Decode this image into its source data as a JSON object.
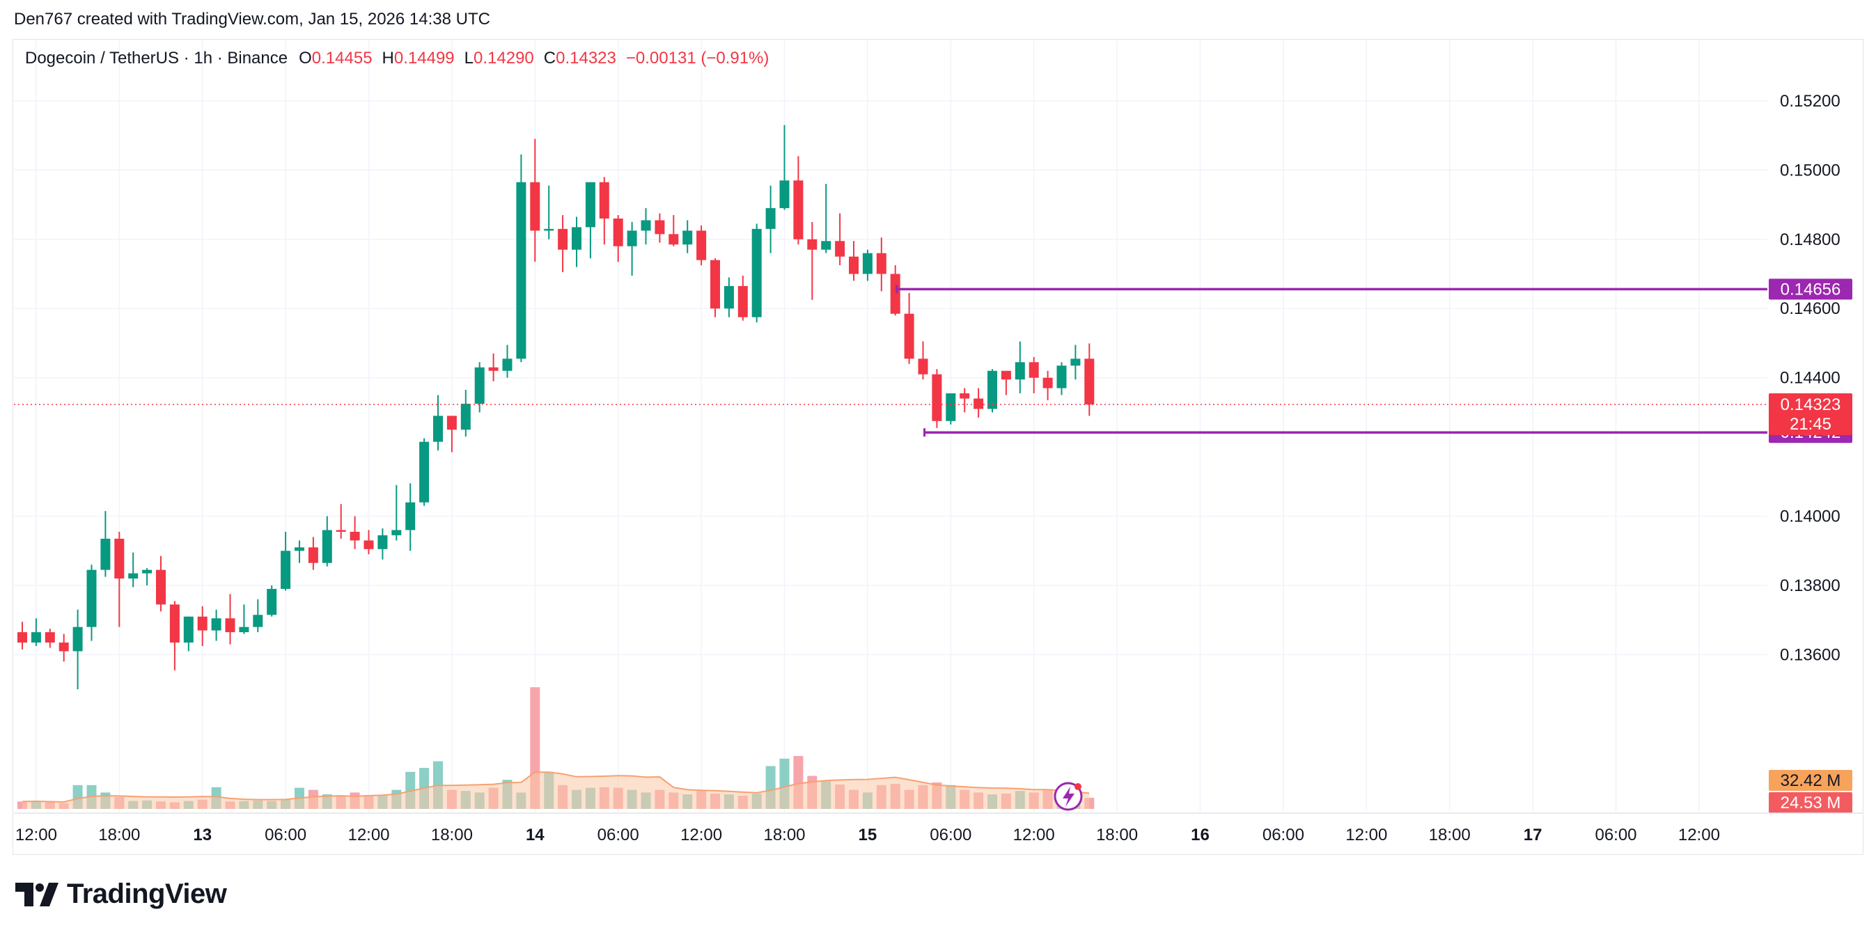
{
  "caption": "Den767 created with TradingView.com, Jan 15, 2026 14:38 UTC",
  "brand": {
    "name": "TradingView",
    "logo_icon": "tradingview-logo-icon"
  },
  "legend": {
    "symbol": "Dogecoin / TetherUS · 1h · Binance",
    "o_label": "O",
    "o_value": "0.14455",
    "h_label": "H",
    "h_value": "0.14499",
    "l_label": "L",
    "l_value": "0.14290",
    "c_label": "C",
    "c_value": "0.14323",
    "change": "−0.00131 (−0.91%)"
  },
  "colors": {
    "up": "#089981",
    "down": "#f23645",
    "level": "#9c27b0",
    "vol_up": "#8ccfc4",
    "vol_down": "#f7a5ab",
    "vol_ma": "#fbc9a8"
  },
  "chart_data": {
    "type": "candlestick",
    "timeframe": "1h",
    "ylim": [
      0.1344,
      0.1525
    ],
    "y_ticks": [
      "0.15200",
      "0.15000",
      "0.14800",
      "0.14600",
      "0.14400",
      "0.14000",
      "0.13800",
      "0.13600"
    ],
    "x_ticks": [
      {
        "label": "12:00",
        "index": 1
      },
      {
        "label": "18:00",
        "index": 7
      },
      {
        "label": "13",
        "index": 13
      },
      {
        "label": "06:00",
        "index": 19
      },
      {
        "label": "12:00",
        "index": 25
      },
      {
        "label": "18:00",
        "index": 31
      },
      {
        "label": "14",
        "index": 37
      },
      {
        "label": "06:00",
        "index": 43
      },
      {
        "label": "12:00",
        "index": 49
      },
      {
        "label": "18:00",
        "index": 55
      },
      {
        "label": "15",
        "index": 61
      },
      {
        "label": "06:00",
        "index": 67
      },
      {
        "label": "12:00",
        "index": 73
      },
      {
        "label": "18:00",
        "index": 79
      },
      {
        "label": "16",
        "index": 85
      },
      {
        "label": "06:00",
        "index": 91
      },
      {
        "label": "12:00",
        "index": 97
      },
      {
        "label": "18:00",
        "index": 103
      },
      {
        "label": "17",
        "index": 109
      },
      {
        "label": "06:00",
        "index": 115
      },
      {
        "label": "12:00",
        "index": 121
      }
    ],
    "candles": [
      [
        0.13665,
        0.13695,
        0.13615,
        0.13635
      ],
      [
        0.13635,
        0.13705,
        0.13625,
        0.13665
      ],
      [
        0.13665,
        0.13675,
        0.1362,
        0.13635
      ],
      [
        0.13635,
        0.1366,
        0.1358,
        0.1361
      ],
      [
        0.1361,
        0.1373,
        0.135,
        0.1368
      ],
      [
        0.1368,
        0.1386,
        0.1364,
        0.13845
      ],
      [
        0.13845,
        0.14015,
        0.13825,
        0.13935
      ],
      [
        0.13935,
        0.13955,
        0.1368,
        0.1382
      ],
      [
        0.1382,
        0.13895,
        0.13795,
        0.13835
      ],
      [
        0.13835,
        0.1385,
        0.138,
        0.13845
      ],
      [
        0.13845,
        0.13885,
        0.13725,
        0.13745
      ],
      [
        0.13745,
        0.13755,
        0.13555,
        0.13635
      ],
      [
        0.13635,
        0.1371,
        0.1361,
        0.1371
      ],
      [
        0.1371,
        0.1374,
        0.13625,
        0.1367
      ],
      [
        0.1367,
        0.1373,
        0.1364,
        0.13705
      ],
      [
        0.13705,
        0.13775,
        0.1363,
        0.13665
      ],
      [
        0.13665,
        0.13745,
        0.1366,
        0.1368
      ],
      [
        0.1368,
        0.1376,
        0.13665,
        0.13715
      ],
      [
        0.13715,
        0.138,
        0.1371,
        0.1379
      ],
      [
        0.1379,
        0.13955,
        0.13785,
        0.139
      ],
      [
        0.139,
        0.1393,
        0.13865,
        0.1391
      ],
      [
        0.1391,
        0.1394,
        0.13845,
        0.13865
      ],
      [
        0.13865,
        0.14,
        0.13855,
        0.1396
      ],
      [
        0.1396,
        0.14035,
        0.13935,
        0.13955
      ],
      [
        0.13955,
        0.14,
        0.13905,
        0.1393
      ],
      [
        0.1393,
        0.1396,
        0.1389,
        0.13905
      ],
      [
        0.13905,
        0.13965,
        0.13875,
        0.13945
      ],
      [
        0.13945,
        0.1409,
        0.1393,
        0.1396
      ],
      [
        0.1396,
        0.14095,
        0.139,
        0.1404
      ],
      [
        0.1404,
        0.14225,
        0.1403,
        0.14215
      ],
      [
        0.14215,
        0.1435,
        0.1419,
        0.1429
      ],
      [
        0.1429,
        0.1429,
        0.14185,
        0.1425
      ],
      [
        0.1425,
        0.14365,
        0.1423,
        0.14325
      ],
      [
        0.14325,
        0.14445,
        0.143,
        0.1443
      ],
      [
        0.1443,
        0.1447,
        0.1439,
        0.1442
      ],
      [
        0.1442,
        0.14495,
        0.144,
        0.14455
      ],
      [
        0.14455,
        0.15045,
        0.14445,
        0.14965
      ],
      [
        0.14965,
        0.1509,
        0.14735,
        0.14825
      ],
      [
        0.14825,
        0.14955,
        0.148,
        0.1483
      ],
      [
        0.1483,
        0.1487,
        0.14705,
        0.1477
      ],
      [
        0.1477,
        0.14865,
        0.1472,
        0.14835
      ],
      [
        0.14835,
        0.14965,
        0.14745,
        0.14965
      ],
      [
        0.14965,
        0.1498,
        0.14785,
        0.1486
      ],
      [
        0.1486,
        0.1487,
        0.14735,
        0.1478
      ],
      [
        0.1478,
        0.1485,
        0.14695,
        0.14825
      ],
      [
        0.14825,
        0.1489,
        0.14785,
        0.14855
      ],
      [
        0.14855,
        0.14875,
        0.1479,
        0.14815
      ],
      [
        0.14815,
        0.1487,
        0.1478,
        0.14785
      ],
      [
        0.14785,
        0.14855,
        0.1476,
        0.14825
      ],
      [
        0.14825,
        0.1484,
        0.14725,
        0.1474
      ],
      [
        0.1474,
        0.14745,
        0.14575,
        0.146
      ],
      [
        0.146,
        0.1469,
        0.14575,
        0.14665
      ],
      [
        0.14665,
        0.14695,
        0.14565,
        0.14575
      ],
      [
        0.14575,
        0.14845,
        0.1456,
        0.1483
      ],
      [
        0.1483,
        0.14955,
        0.1476,
        0.1489
      ],
      [
        0.1489,
        0.1513,
        0.14885,
        0.1497
      ],
      [
        0.1497,
        0.1504,
        0.14785,
        0.148
      ],
      [
        0.148,
        0.1485,
        0.14625,
        0.1477
      ],
      [
        0.1477,
        0.1496,
        0.1476,
        0.14795
      ],
      [
        0.14795,
        0.14875,
        0.14725,
        0.1475
      ],
      [
        0.1475,
        0.14795,
        0.1468,
        0.147
      ],
      [
        0.147,
        0.1477,
        0.1468,
        0.1476
      ],
      [
        0.1476,
        0.14805,
        0.1465,
        0.147
      ],
      [
        0.147,
        0.14725,
        0.1458,
        0.14585
      ],
      [
        0.14585,
        0.14645,
        0.1444,
        0.14455
      ],
      [
        0.14455,
        0.14505,
        0.14395,
        0.1441
      ],
      [
        0.1441,
        0.14425,
        0.14255,
        0.14275
      ],
      [
        0.14275,
        0.14345,
        0.14265,
        0.14355
      ],
      [
        0.14355,
        0.1437,
        0.143,
        0.1434
      ],
      [
        0.1434,
        0.1437,
        0.14285,
        0.1431
      ],
      [
        0.1431,
        0.14425,
        0.143,
        0.1442
      ],
      [
        0.1442,
        0.14415,
        0.1435,
        0.14395
      ],
      [
        0.14395,
        0.14505,
        0.14355,
        0.14445
      ],
      [
        0.14445,
        0.1446,
        0.14355,
        0.144
      ],
      [
        0.144,
        0.1442,
        0.14335,
        0.1437
      ],
      [
        0.1437,
        0.14445,
        0.1435,
        0.14435
      ],
      [
        0.14435,
        0.14495,
        0.14395,
        0.14455
      ],
      [
        0.14455,
        0.14499,
        0.1429,
        0.14323
      ]
    ],
    "volume": [
      0.28,
      0.3,
      0.25,
      0.22,
      0.9,
      0.9,
      0.62,
      0.45,
      0.3,
      0.32,
      0.28,
      0.25,
      0.3,
      0.35,
      0.82,
      0.28,
      0.3,
      0.32,
      0.3,
      0.38,
      0.8,
      0.72,
      0.55,
      0.5,
      0.62,
      0.5,
      0.52,
      0.72,
      1.4,
      1.55,
      1.8,
      0.72,
      0.68,
      0.62,
      0.8,
      1.1,
      0.62,
      4.6,
      1.4,
      0.9,
      0.72,
      0.8,
      0.82,
      0.8,
      0.72,
      0.62,
      0.72,
      0.62,
      0.55,
      0.68,
      0.58,
      0.55,
      0.5,
      0.58,
      1.62,
      1.9,
      2.0,
      1.25,
      1.05,
      0.92,
      0.72,
      0.62,
      0.9,
      0.95,
      0.72,
      0.9,
      1.0,
      0.9,
      0.72,
      0.62,
      0.55,
      0.58,
      0.68,
      0.62,
      0.72,
      0.55,
      0.48,
      0.42
    ],
    "volume_labels": {
      "ma": "32.42 M",
      "last": "24.53 M"
    },
    "levels": [
      {
        "value": 0.14656,
        "label": "0.14656",
        "start_index": 63
      },
      {
        "value": 0.14242,
        "label": "0.14242",
        "start_index": 65
      }
    ],
    "last_price": {
      "label": "0.14323",
      "countdown": "21:45",
      "value": 0.14323
    }
  }
}
